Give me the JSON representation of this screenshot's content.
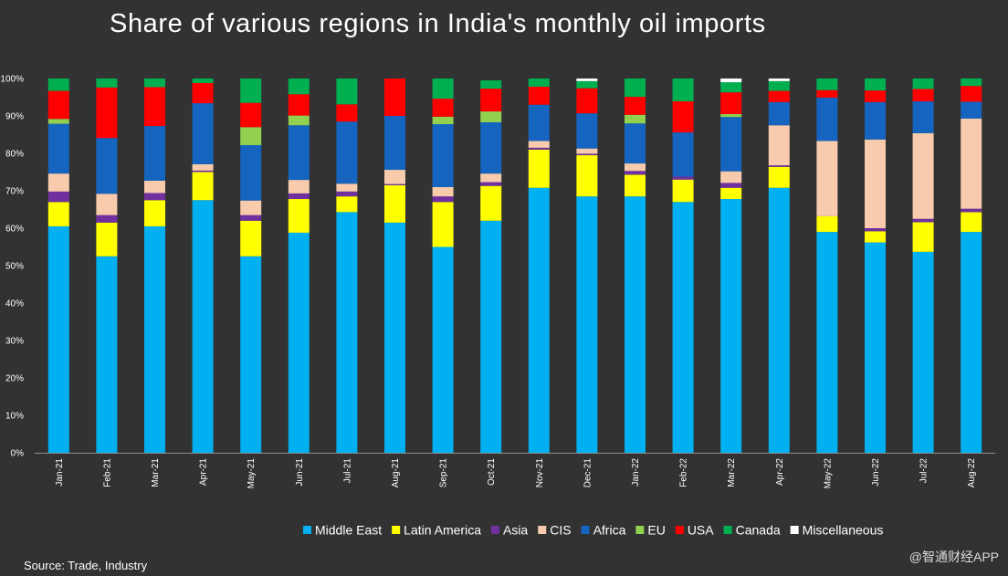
{
  "chart_data": {
    "type": "bar",
    "stacked": true,
    "percent": true,
    "title": "Share of various regions in India's monthly oil imports",
    "xlabel": "",
    "ylabel": "",
    "ylim": [
      0,
      100
    ],
    "grid": false,
    "legend_position": "bottom-right",
    "y_ticks": [
      "0%",
      "10%",
      "20%",
      "30%",
      "40%",
      "50%",
      "60%",
      "70%",
      "80%",
      "90%",
      "100%"
    ],
    "categories": [
      "Jan-21",
      "Feb-21",
      "Mar-21",
      "Apr-21",
      "May-21",
      "Jun-21",
      "Jul-21",
      "Aug-21",
      "Sep-21",
      "Oct-21",
      "Nov-21",
      "Dec-21",
      "Jan-22",
      "Feb-22",
      "Mar-22",
      "Apr-22",
      "May-22",
      "Jun-22",
      "Jul-22",
      "Aug-22"
    ],
    "series": [
      {
        "name": "Middle East",
        "color": "#00b0f0",
        "values": [
          60.5,
          52.5,
          60.5,
          67.5,
          52.5,
          58.8,
          64.3,
          61.5,
          55.0,
          62.0,
          70.8,
          68.5,
          68.5,
          67.0,
          67.8,
          70.8,
          59.0,
          56.2,
          53.7,
          59.0
        ]
      },
      {
        "name": "Latin America",
        "color": "#ffff00",
        "values": [
          6.5,
          9.0,
          7.0,
          7.5,
          9.5,
          9.0,
          4.2,
          10.0,
          12.0,
          9.3,
          10.2,
          11.0,
          5.8,
          6.0,
          3.0,
          5.6,
          4.2,
          3.0,
          7.9,
          5.3
        ]
      },
      {
        "name": "Asia",
        "color": "#7030a0",
        "values": [
          2.8,
          2.0,
          1.9,
          0.4,
          1.5,
          1.5,
          1.3,
          0.3,
          1.5,
          1.0,
          0.5,
          0.4,
          1.0,
          0.8,
          1.3,
          0.4,
          0.0,
          0.8,
          0.9,
          0.9
        ]
      },
      {
        "name": "CIS",
        "color": "#f8cbad",
        "values": [
          4.8,
          5.7,
          3.3,
          1.7,
          3.9,
          3.6,
          2.1,
          3.8,
          2.5,
          2.3,
          1.8,
          1.4,
          2.0,
          0.0,
          3.1,
          10.7,
          20.1,
          23.7,
          22.9,
          24.1
        ]
      },
      {
        "name": "Africa",
        "color": "#1565c0",
        "values": [
          13.3,
          14.9,
          14.6,
          16.3,
          14.8,
          14.6,
          16.6,
          14.4,
          16.8,
          13.7,
          9.7,
          9.4,
          10.7,
          11.8,
          14.5,
          6.2,
          11.6,
          10.0,
          8.5,
          4.5
        ]
      },
      {
        "name": "EU",
        "color": "#92d050",
        "values": [
          1.3,
          0.0,
          0.0,
          0.0,
          4.8,
          2.6,
          0.0,
          0.0,
          2.0,
          2.9,
          0.0,
          0.0,
          2.3,
          0.0,
          0.8,
          0.0,
          0.0,
          0.0,
          0.0,
          0.0
        ]
      },
      {
        "name": "USA",
        "color": "#ff0000",
        "values": [
          7.5,
          13.5,
          10.4,
          5.4,
          6.5,
          5.7,
          4.6,
          10.0,
          4.8,
          6.1,
          4.8,
          6.7,
          4.8,
          8.3,
          5.8,
          3.0,
          2.0,
          3.1,
          3.3,
          4.2
        ]
      },
      {
        "name": "Canada",
        "color": "#00b050",
        "values": [
          3.3,
          2.4,
          2.3,
          1.2,
          6.5,
          4.2,
          6.9,
          0.0,
          5.4,
          2.2,
          2.2,
          1.9,
          4.9,
          6.1,
          2.7,
          2.6,
          3.1,
          3.2,
          2.8,
          2.0
        ]
      },
      {
        "name": "Miscellaneous",
        "color": "#ffffff",
        "values": [
          0.0,
          0.0,
          0.0,
          0.0,
          0.0,
          0.0,
          0.0,
          0.0,
          0.0,
          0.0,
          0.0,
          0.7,
          0.0,
          0.0,
          1.0,
          0.7,
          0.0,
          0.0,
          0.0,
          0.0
        ]
      }
    ]
  },
  "source_text": "Source: Trade, Industry",
  "watermark_text": "@智通财经APP"
}
